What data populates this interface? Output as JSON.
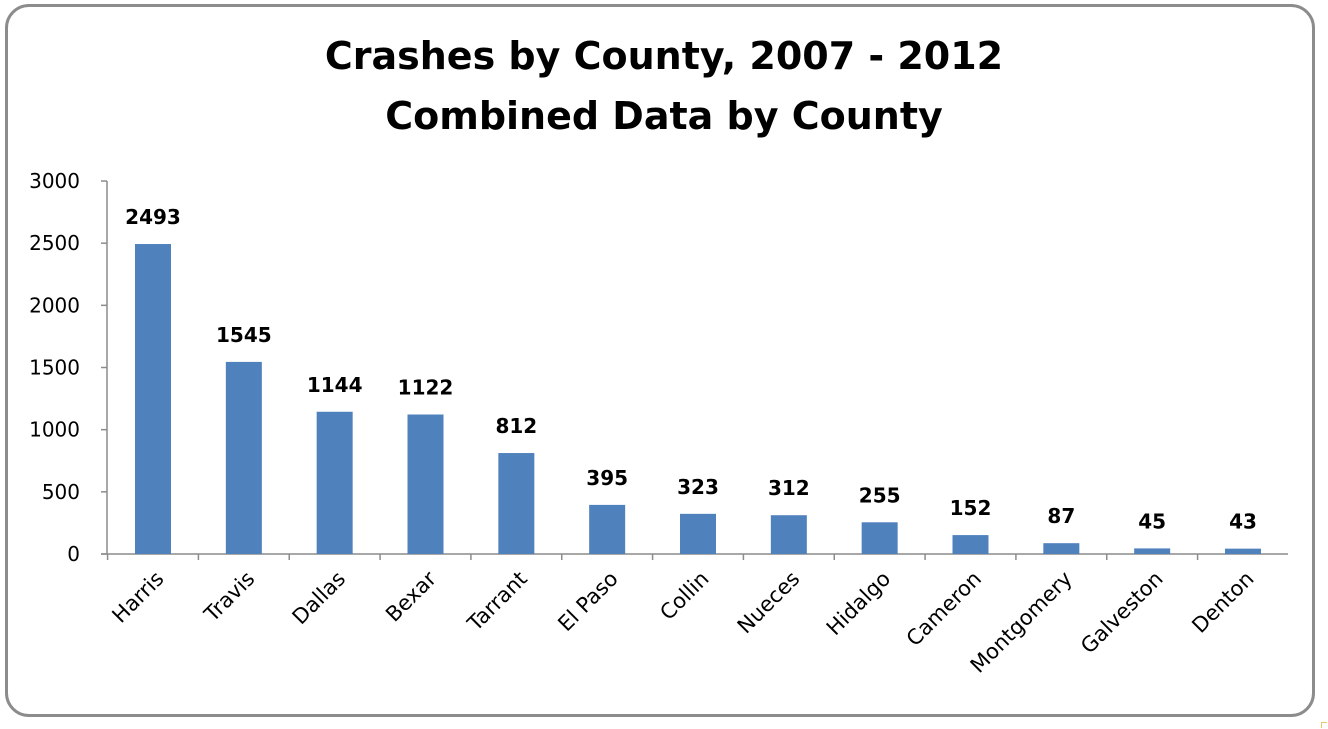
{
  "chart_data": {
    "type": "bar",
    "title": "Crashes by County, 2007 - 2012",
    "subtitle": "Combined Data by County",
    "xlabel": "",
    "ylabel": "",
    "categories": [
      "Harris",
      "Travis",
      "Dallas",
      "Bexar",
      "Tarrant",
      "El Paso",
      "Collin",
      "Nueces",
      "Hidalgo",
      "Cameron",
      "Montgomery",
      "Galveston",
      "Denton"
    ],
    "values": [
      2493,
      1545,
      1144,
      1122,
      812,
      395,
      323,
      312,
      255,
      152,
      87,
      45,
      43
    ],
    "ylim": [
      0,
      3000
    ],
    "yticks": [
      0,
      500,
      1000,
      1500,
      2000,
      2500,
      3000
    ],
    "grid": false,
    "legend": "none",
    "bar_color": "#4f81bd",
    "data_labels": true
  }
}
